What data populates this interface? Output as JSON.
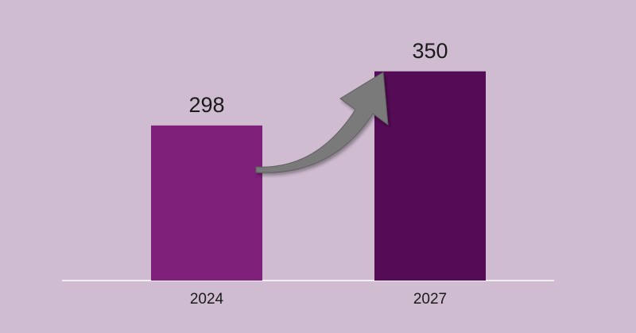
{
  "chart_data": {
    "type": "bar",
    "categories": [
      "2024",
      "2027"
    ],
    "values": [
      298,
      350
    ],
    "colors": [
      "#7e1f7a",
      "#560b56"
    ],
    "ylim": [
      149,
      388
    ]
  }
}
